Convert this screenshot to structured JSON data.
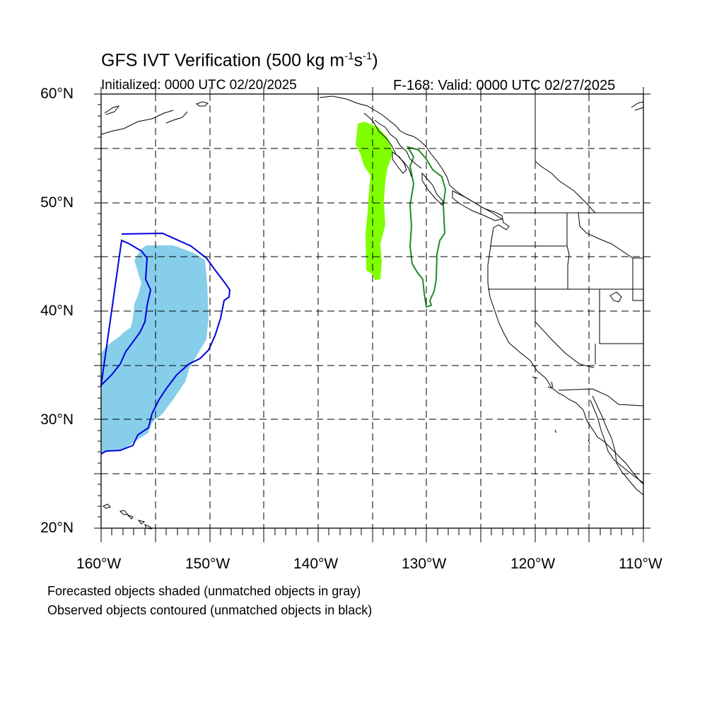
{
  "title": {
    "main": "GFS IVT Verification (500 kg m",
    "exp1": "-1",
    "mid": "s",
    "exp2": "-1",
    "end": ")"
  },
  "initialized": "Initialized: 0000 UTC 02/20/2025",
  "valid": "F-168: Valid: 0000 UTC 02/27/2025",
  "lat_labels": [
    "60°N",
    "50°N",
    "40°N",
    "30°N",
    "20°N"
  ],
  "lon_labels": [
    "160°W",
    "150°W",
    "140°W",
    "130°W",
    "120°W",
    "110°W"
  ],
  "notes": [
    "Forecasted objects shaded (unmatched objects in gray)",
    "Observed objects contoured (unmatched objects in black)"
  ],
  "colors": {
    "forecast_object_1": "#87ceeb",
    "forecast_object_2": "#7fff00",
    "observed_object_1": "#0000e0",
    "observed_object_2": "#228b22",
    "coastline": "#000000",
    "grid": "#000000"
  },
  "map_extent": {
    "lon_min": -160,
    "lon_max": -110,
    "lat_min": 20,
    "lat_max": 60
  }
}
